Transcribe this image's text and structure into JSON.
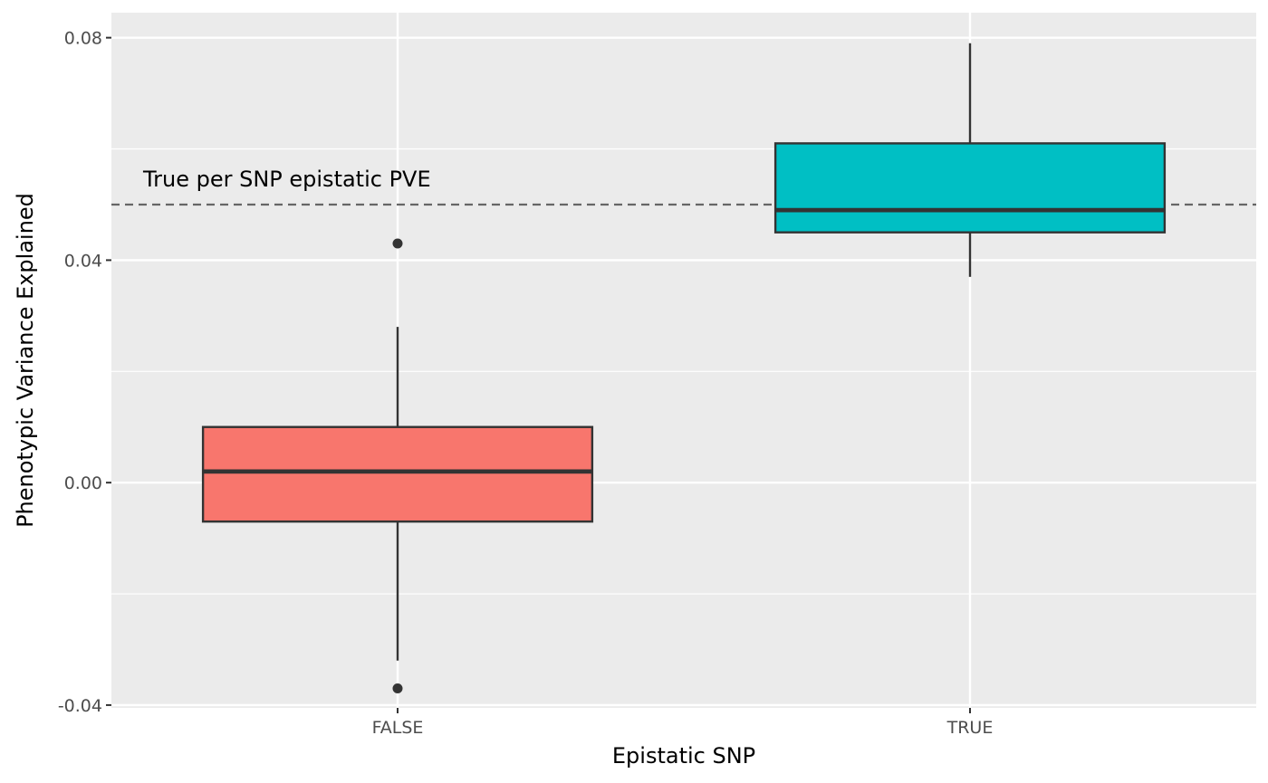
{
  "chart_data": {
    "type": "boxplot",
    "xlabel": "Epistatic SNP",
    "ylabel": "Phenotypic Variance Explained",
    "categories": [
      "FALSE",
      "TRUE"
    ],
    "ylim": [
      -0.0405,
      0.0845
    ],
    "yticks": [
      -0.04,
      0.0,
      0.04,
      0.08
    ],
    "ytick_labels": [
      "-0.04",
      "0.00",
      "0.04",
      "0.08"
    ],
    "grid": true,
    "boxes": [
      {
        "category": "FALSE",
        "whisker_low": -0.032,
        "q1": -0.007,
        "median": 0.002,
        "q3": 0.01,
        "whisker_high": 0.028,
        "outliers": [
          0.043,
          -0.037
        ],
        "color": "#F8766D"
      },
      {
        "category": "TRUE",
        "whisker_low": 0.037,
        "q1": 0.045,
        "median": 0.049,
        "q3": 0.061,
        "whisker_high": 0.079,
        "outliers": [],
        "color": "#00BFC4"
      }
    ],
    "reference_line": {
      "y": 0.05,
      "style": "dashed",
      "label": "True per SNP epistatic PVE"
    }
  },
  "colors": {
    "panel_background": "#EBEBEB",
    "grid_major": "#FFFFFF",
    "box_outline": "#333333",
    "reference_line": "#666666"
  }
}
